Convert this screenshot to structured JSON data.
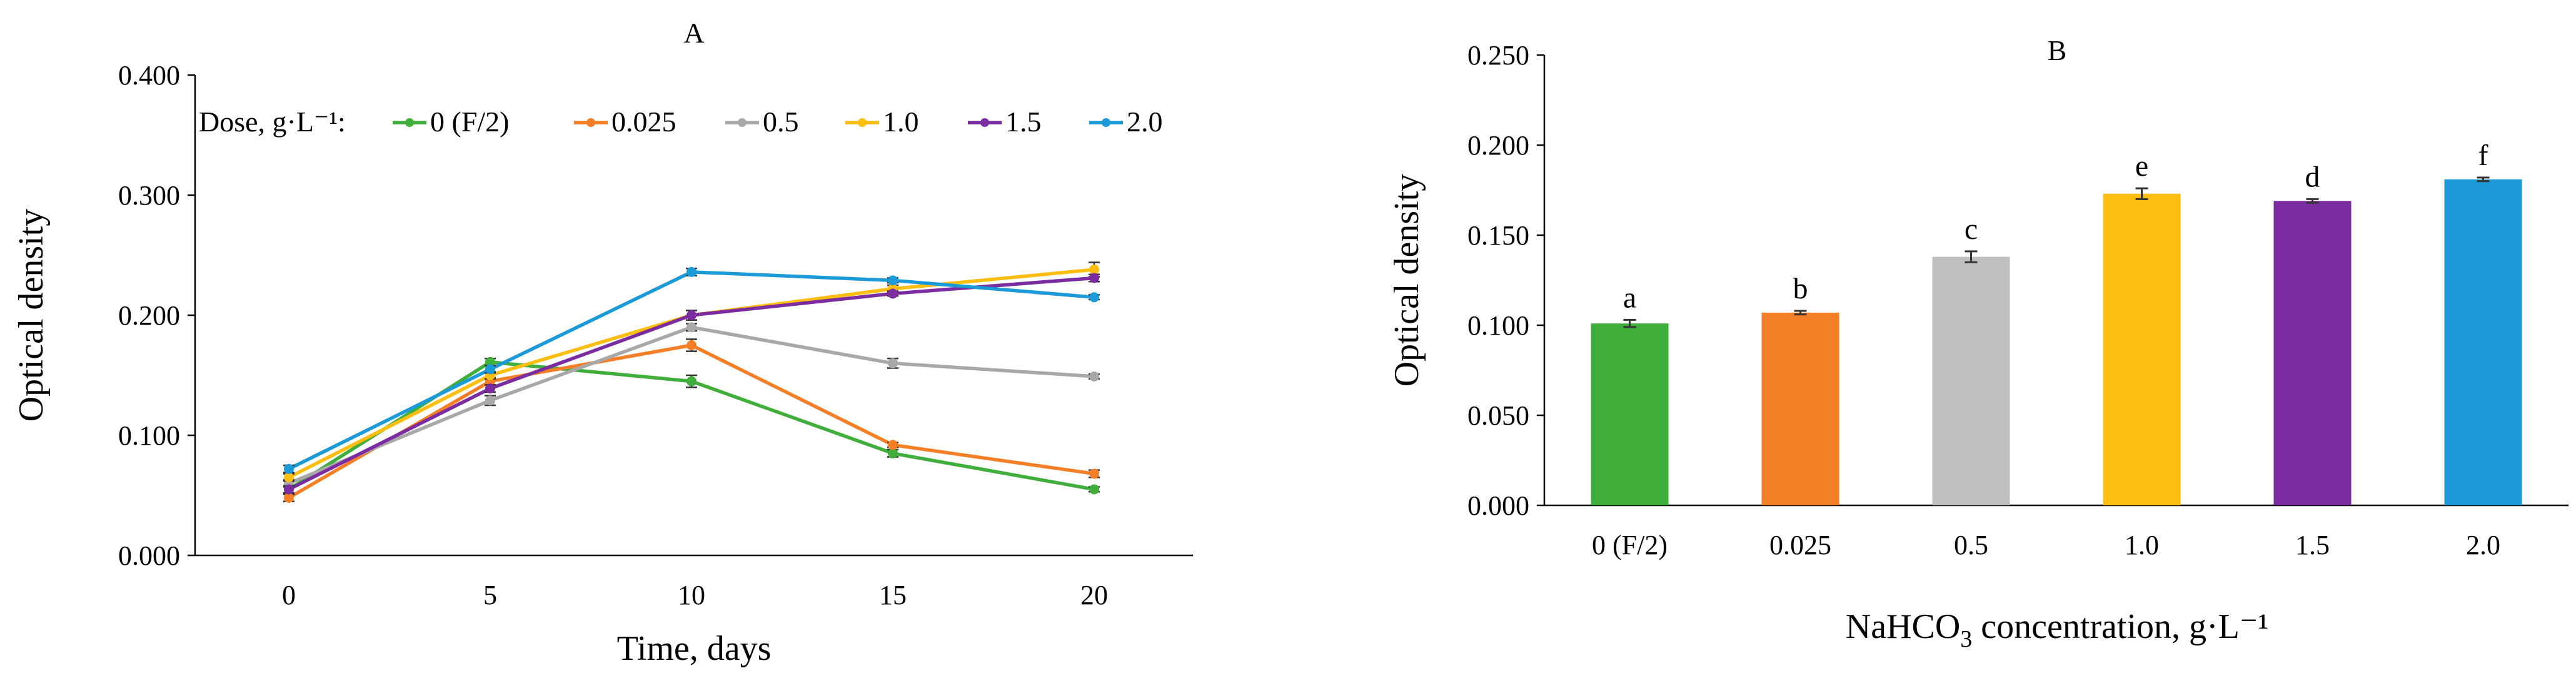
{
  "chart_data": [
    {
      "type": "line",
      "title": "A",
      "xlabel": "Time, days",
      "ylabel": "Optical density",
      "x": [
        0,
        5,
        10,
        15,
        20
      ],
      "x_ticks": [
        "0",
        "5",
        "10",
        "15",
        "20"
      ],
      "ylim": [
        0,
        0.4
      ],
      "y_ticks": [
        "0.000",
        "0.100",
        "0.200",
        "0.300",
        "0.400"
      ],
      "grid": false,
      "legend_title": "Dose, g·L⁻¹:",
      "legend_position": "top",
      "series": [
        {
          "name": "0 (F/2)",
          "color": "#3fae3b",
          "values": [
            0.055,
            0.161,
            0.145,
            0.085,
            0.055
          ],
          "errors": [
            0.003,
            0.003,
            0.005,
            0.003,
            0.002
          ]
        },
        {
          "name": "0.025",
          "color": "#f57f27",
          "values": [
            0.048,
            0.145,
            0.175,
            0.092,
            0.068
          ],
          "errors": [
            0.003,
            0.003,
            0.005,
            0.002,
            0.003
          ]
        },
        {
          "name": "0.5",
          "color": "#a8a8a8",
          "values": [
            0.06,
            0.129,
            0.19,
            0.16,
            0.149
          ],
          "errors": [
            0.003,
            0.004,
            0.003,
            0.004,
            0.002
          ]
        },
        {
          "name": "1.0",
          "color": "#fdbe0f",
          "values": [
            0.065,
            0.15,
            0.2,
            0.222,
            0.238
          ],
          "errors": [
            0.003,
            0.003,
            0.004,
            0.003,
            0.006
          ]
        },
        {
          "name": "1.5",
          "color": "#7b2ca1",
          "values": [
            0.055,
            0.139,
            0.2,
            0.218,
            0.231
          ],
          "errors": [
            0.003,
            0.003,
            0.004,
            0.002,
            0.003
          ]
        },
        {
          "name": "2.0",
          "color": "#1b9ad7",
          "values": [
            0.072,
            0.155,
            0.236,
            0.229,
            0.215
          ],
          "errors": [
            0.003,
            0.003,
            0.003,
            0.002,
            0.002
          ]
        }
      ]
    },
    {
      "type": "bar",
      "title": "B",
      "xlabel_base": "NaHCO",
      "xlabel_sub": "3",
      "xlabel_rest": " concentration, g·L⁻¹",
      "ylabel": "Optical density",
      "categories": [
        "0 (F/2)",
        "0.025",
        "0.5",
        "1.0",
        "1.5",
        "2.0"
      ],
      "values": [
        0.101,
        0.107,
        0.138,
        0.173,
        0.169,
        0.181
      ],
      "errors": [
        0.002,
        0.001,
        0.003,
        0.003,
        0.001,
        0.001
      ],
      "letters": [
        "a",
        "b",
        "c",
        "e",
        "d",
        "f"
      ],
      "colors": [
        "#3fae3b",
        "#f57f27",
        "#bfbfbf",
        "#fdbe0f",
        "#7b2ca1",
        "#1b9ad7"
      ],
      "ylim": [
        0,
        0.25
      ],
      "y_ticks": [
        "0.000",
        "0.050",
        "0.100",
        "0.150",
        "0.200",
        "0.250"
      ],
      "grid": false
    }
  ]
}
